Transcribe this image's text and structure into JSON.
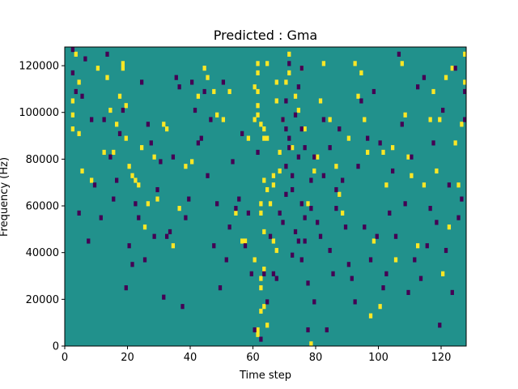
{
  "chart_data": {
    "type": "heatmap",
    "title": "Predicted : Gma",
    "xlabel": "Time step",
    "ylabel": "Frequency (Hz)",
    "xlim": [
      0,
      128
    ],
    "ylim": [
      0,
      128000
    ],
    "xticks": [
      0,
      20,
      40,
      60,
      80,
      100,
      120
    ],
    "xtick_labels": [
      "0",
      "20",
      "40",
      "60",
      "80",
      "100",
      "120"
    ],
    "yticks": [
      0,
      20000,
      40000,
      60000,
      80000,
      100000,
      120000
    ],
    "ytick_labels": [
      "0",
      "20000",
      "40000",
      "60000",
      "80000",
      "100000",
      "120000"
    ],
    "grid": false,
    "value_encoding": {
      "0": "dark (low)",
      "1": "teal (background)",
      "2": "yellow (high)"
    },
    "colors": {
      "low": "#440154",
      "mid": "#21918c",
      "high": "#fde725"
    },
    "n_time_steps": 128,
    "n_frequency_bins": 64,
    "background_value": 1,
    "cells_high": [
      [
        2,
        52
      ],
      [
        2,
        49
      ],
      [
        2,
        46
      ],
      [
        3,
        62
      ],
      [
        4,
        56
      ],
      [
        4,
        45
      ],
      [
        5,
        37
      ],
      [
        8,
        35
      ],
      [
        10,
        59
      ],
      [
        12,
        41
      ],
      [
        13,
        57
      ],
      [
        14,
        50
      ],
      [
        15,
        41
      ],
      [
        16,
        47
      ],
      [
        17,
        53
      ],
      [
        18,
        60
      ],
      [
        18,
        59
      ],
      [
        19,
        51
      ],
      [
        19,
        44
      ],
      [
        20,
        38
      ],
      [
        21,
        36
      ],
      [
        22,
        35
      ],
      [
        23,
        34
      ],
      [
        24,
        42
      ],
      [
        25,
        25
      ],
      [
        26,
        30
      ],
      [
        28,
        40
      ],
      [
        29,
        31
      ],
      [
        31,
        47
      ],
      [
        32,
        46
      ],
      [
        34,
        21
      ],
      [
        36,
        29
      ],
      [
        38,
        38
      ],
      [
        40,
        39
      ],
      [
        42,
        53
      ],
      [
        44,
        59
      ],
      [
        45,
        57
      ],
      [
        47,
        54
      ],
      [
        48,
        49
      ],
      [
        50,
        48
      ],
      [
        52,
        54
      ],
      [
        54,
        28
      ],
      [
        56,
        22
      ],
      [
        57,
        22
      ],
      [
        58,
        44
      ],
      [
        60,
        18
      ],
      [
        60,
        48
      ],
      [
        60,
        55
      ],
      [
        61,
        3
      ],
      [
        61,
        2
      ],
      [
        61,
        60
      ],
      [
        61,
        58
      ],
      [
        61,
        54
      ],
      [
        61,
        51
      ],
      [
        61,
        49
      ],
      [
        62,
        14
      ],
      [
        62,
        12
      ],
      [
        62,
        7
      ],
      [
        62,
        28
      ],
      [
        62,
        30
      ],
      [
        62,
        47
      ],
      [
        63,
        46
      ],
      [
        63,
        44
      ],
      [
        63,
        35
      ],
      [
        63,
        24
      ],
      [
        63,
        16
      ],
      [
        63,
        8
      ],
      [
        64,
        4
      ],
      [
        64,
        60
      ],
      [
        64,
        44
      ],
      [
        64,
        33
      ],
      [
        65,
        30
      ],
      [
        66,
        34
      ],
      [
        66,
        36
      ],
      [
        66,
        22
      ],
      [
        67,
        20
      ],
      [
        67,
        56
      ],
      [
        67,
        52
      ],
      [
        68,
        41
      ],
      [
        68,
        37
      ],
      [
        69,
        48
      ],
      [
        70,
        56
      ],
      [
        71,
        62
      ],
      [
        71,
        58
      ],
      [
        72,
        42
      ],
      [
        73,
        53
      ],
      [
        74,
        50
      ],
      [
        75,
        59
      ],
      [
        76,
        46
      ],
      [
        77,
        30
      ],
      [
        78,
        0
      ],
      [
        79,
        37
      ],
      [
        80,
        40
      ],
      [
        81,
        52
      ],
      [
        82,
        60
      ],
      [
        84,
        48
      ],
      [
        86,
        38
      ],
      [
        87,
        32
      ],
      [
        88,
        28
      ],
      [
        90,
        44
      ],
      [
        92,
        60
      ],
      [
        93,
        53
      ],
      [
        94,
        58
      ],
      [
        95,
        48
      ],
      [
        96,
        41
      ],
      [
        97,
        6
      ],
      [
        98,
        22
      ],
      [
        100,
        8
      ],
      [
        101,
        41
      ],
      [
        102,
        34
      ],
      [
        104,
        42
      ],
      [
        105,
        18
      ],
      [
        107,
        60
      ],
      [
        108,
        49
      ],
      [
        109,
        40
      ],
      [
        110,
        36
      ],
      [
        112,
        21
      ],
      [
        114,
        34
      ],
      [
        116,
        48
      ],
      [
        117,
        54
      ],
      [
        118,
        37
      ],
      [
        119,
        48
      ],
      [
        120,
        15
      ],
      [
        121,
        57
      ],
      [
        122,
        25
      ],
      [
        123,
        59
      ],
      [
        124,
        43
      ],
      [
        125,
        34
      ],
      [
        126,
        47
      ],
      [
        127,
        56
      ],
      [
        127,
        62
      ]
    ],
    "cells_low": [
      [
        2,
        63
      ],
      [
        2,
        58
      ],
      [
        3,
        54
      ],
      [
        4,
        28
      ],
      [
        5,
        53
      ],
      [
        6,
        61
      ],
      [
        7,
        22
      ],
      [
        8,
        48
      ],
      [
        9,
        34
      ],
      [
        11,
        27
      ],
      [
        12,
        48
      ],
      [
        13,
        62
      ],
      [
        14,
        40
      ],
      [
        15,
        31
      ],
      [
        16,
        35
      ],
      [
        17,
        45
      ],
      [
        18,
        50
      ],
      [
        19,
        12
      ],
      [
        20,
        21
      ],
      [
        21,
        17
      ],
      [
        22,
        30
      ],
      [
        23,
        27
      ],
      [
        24,
        56
      ],
      [
        25,
        18
      ],
      [
        26,
        47
      ],
      [
        27,
        43
      ],
      [
        28,
        23
      ],
      [
        29,
        33
      ],
      [
        30,
        39
      ],
      [
        31,
        10
      ],
      [
        32,
        23
      ],
      [
        33,
        24
      ],
      [
        34,
        40
      ],
      [
        35,
        57
      ],
      [
        36,
        55
      ],
      [
        37,
        8
      ],
      [
        38,
        27
      ],
      [
        39,
        31
      ],
      [
        40,
        56
      ],
      [
        41,
        50
      ],
      [
        42,
        43
      ],
      [
        43,
        44
      ],
      [
        44,
        54
      ],
      [
        45,
        36
      ],
      [
        46,
        48
      ],
      [
        47,
        21
      ],
      [
        48,
        30
      ],
      [
        49,
        12
      ],
      [
        50,
        56
      ],
      [
        51,
        18
      ],
      [
        52,
        25
      ],
      [
        53,
        39
      ],
      [
        54,
        29
      ],
      [
        55,
        31
      ],
      [
        56,
        45
      ],
      [
        57,
        21
      ],
      [
        58,
        28
      ],
      [
        59,
        15
      ],
      [
        60,
        3
      ],
      [
        61,
        41
      ],
      [
        62,
        1
      ],
      [
        63,
        15
      ],
      [
        64,
        9
      ],
      [
        65,
        23
      ],
      [
        66,
        15
      ],
      [
        67,
        14
      ],
      [
        68,
        28
      ],
      [
        69,
        26
      ],
      [
        69,
        48
      ],
      [
        70,
        52
      ],
      [
        70,
        46
      ],
      [
        70,
        38
      ],
      [
        70,
        32
      ],
      [
        71,
        44
      ],
      [
        71,
        60
      ],
      [
        71,
        42
      ],
      [
        72,
        36
      ],
      [
        72,
        33
      ],
      [
        72,
        19
      ],
      [
        73,
        49
      ],
      [
        73,
        24
      ],
      [
        74,
        55
      ],
      [
        74,
        40
      ],
      [
        74,
        22
      ],
      [
        75,
        59
      ],
      [
        75,
        46
      ],
      [
        75,
        30
      ],
      [
        75,
        18
      ],
      [
        76,
        42
      ],
      [
        76,
        27
      ],
      [
        76,
        22
      ],
      [
        77,
        13
      ],
      [
        77,
        3
      ],
      [
        78,
        29
      ],
      [
        78,
        35
      ],
      [
        79,
        40
      ],
      [
        79,
        9
      ],
      [
        80,
        26
      ],
      [
        81,
        23
      ],
      [
        82,
        36
      ],
      [
        82,
        48
      ],
      [
        83,
        3
      ],
      [
        84,
        42
      ],
      [
        84,
        20
      ],
      [
        85,
        15
      ],
      [
        86,
        33
      ],
      [
        86,
        29
      ],
      [
        87,
        46
      ],
      [
        88,
        35
      ],
      [
        89,
        25
      ],
      [
        90,
        17
      ],
      [
        91,
        14
      ],
      [
        92,
        9
      ],
      [
        93,
        38
      ],
      [
        94,
        52
      ],
      [
        95,
        25
      ],
      [
        96,
        44
      ],
      [
        97,
        18
      ],
      [
        98,
        54
      ],
      [
        99,
        23
      ],
      [
        100,
        43
      ],
      [
        101,
        12
      ],
      [
        102,
        15
      ],
      [
        103,
        28
      ],
      [
        104,
        37
      ],
      [
        105,
        23
      ],
      [
        106,
        62
      ],
      [
        107,
        47
      ],
      [
        108,
        30
      ],
      [
        109,
        11
      ],
      [
        110,
        40
      ],
      [
        111,
        18
      ],
      [
        112,
        55
      ],
      [
        113,
        14
      ],
      [
        114,
        57
      ],
      [
        115,
        21
      ],
      [
        116,
        29
      ],
      [
        117,
        43
      ],
      [
        118,
        26
      ],
      [
        119,
        4
      ],
      [
        120,
        50
      ],
      [
        121,
        20
      ],
      [
        122,
        34
      ],
      [
        123,
        11
      ],
      [
        124,
        59
      ],
      [
        125,
        27
      ],
      [
        126,
        31
      ],
      [
        127,
        48
      ],
      [
        127,
        54
      ]
    ]
  }
}
